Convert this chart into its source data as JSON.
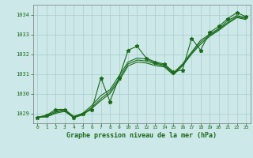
{
  "title": "Graphe pression niveau de la mer (hPa)",
  "bg_color": "#cce8e8",
  "grid_color": "#aacccc",
  "line_color": "#1a6b1a",
  "ylim": [
    1028.5,
    1034.5
  ],
  "xlim": [
    -0.5,
    23.5
  ],
  "yticks": [
    1029,
    1030,
    1031,
    1032,
    1033,
    1034
  ],
  "xticks": [
    0,
    1,
    2,
    3,
    4,
    5,
    6,
    7,
    8,
    9,
    10,
    11,
    12,
    13,
    14,
    15,
    16,
    17,
    18,
    19,
    20,
    21,
    22,
    23
  ],
  "series1_x": [
    0,
    1,
    2,
    3,
    4,
    5,
    6,
    7,
    8,
    9,
    10,
    11,
    12,
    13,
    14,
    15,
    16,
    17,
    18,
    19,
    20,
    21,
    22,
    23
  ],
  "series1_y": [
    1028.8,
    1028.9,
    1029.2,
    1029.2,
    1028.8,
    1029.0,
    1029.2,
    1030.8,
    1029.6,
    1030.8,
    1032.2,
    1032.4,
    1031.8,
    1031.6,
    1031.5,
    1031.1,
    1031.2,
    1032.8,
    1032.2,
    1033.1,
    1033.4,
    1033.8,
    1034.1,
    1033.9
  ],
  "series2_x": [
    0,
    1,
    2,
    3,
    4,
    5,
    6,
    7,
    8,
    9,
    10,
    11,
    12,
    13,
    14,
    15,
    16,
    17,
    18,
    19,
    20,
    21,
    22,
    23
  ],
  "series2_y": [
    1028.8,
    1028.9,
    1029.1,
    1029.2,
    1028.85,
    1029.0,
    1029.4,
    1029.9,
    1030.2,
    1030.9,
    1031.6,
    1031.8,
    1031.75,
    1031.55,
    1031.45,
    1031.05,
    1031.5,
    1032.1,
    1032.7,
    1033.0,
    1033.3,
    1033.7,
    1033.95,
    1033.85
  ],
  "series3_x": [
    0,
    1,
    2,
    3,
    4,
    5,
    6,
    7,
    8,
    9,
    10,
    11,
    12,
    13,
    14,
    15,
    16,
    17,
    18,
    19,
    20,
    21,
    22,
    23
  ],
  "series3_y": [
    1028.8,
    1028.85,
    1029.05,
    1029.15,
    1028.8,
    1028.95,
    1029.3,
    1029.75,
    1030.1,
    1030.75,
    1031.5,
    1031.7,
    1031.65,
    1031.5,
    1031.4,
    1031.0,
    1031.45,
    1032.05,
    1032.6,
    1032.95,
    1033.25,
    1033.6,
    1033.9,
    1033.8
  ],
  "series4_x": [
    0,
    1,
    2,
    3,
    4,
    5,
    6,
    7,
    8,
    9,
    10,
    11,
    12,
    13,
    14,
    15,
    16,
    17,
    18,
    19,
    20,
    21,
    22,
    23
  ],
  "series4_y": [
    1028.8,
    1028.82,
    1029.0,
    1029.1,
    1028.78,
    1028.92,
    1029.25,
    1029.65,
    1030.0,
    1030.65,
    1031.4,
    1031.6,
    1031.55,
    1031.42,
    1031.35,
    1030.95,
    1031.4,
    1032.0,
    1032.5,
    1032.9,
    1033.2,
    1033.55,
    1033.85,
    1033.75
  ],
  "ylabel_fontsize": 5,
  "xlabel_fontsize": 6,
  "tick_fontsize": 5
}
